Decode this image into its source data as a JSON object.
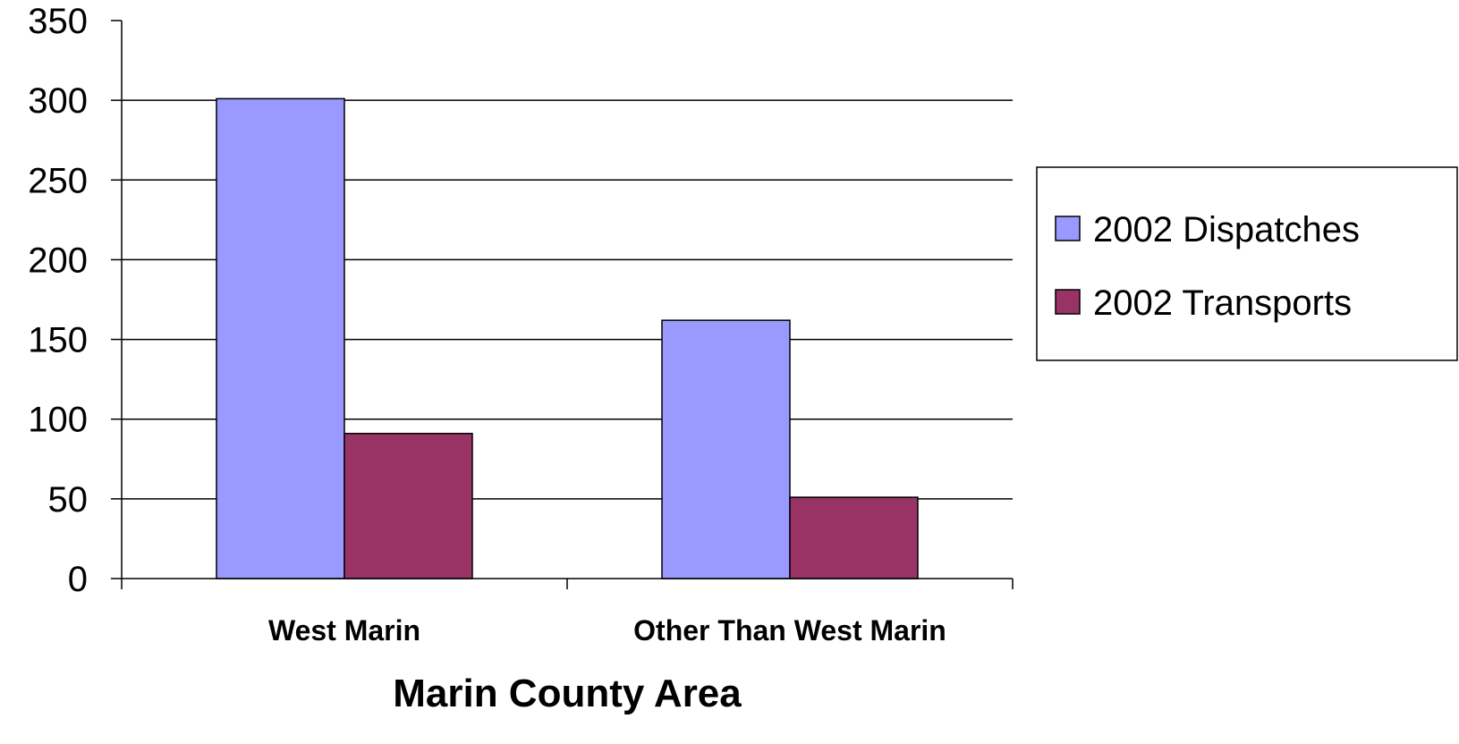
{
  "chart_data": {
    "type": "bar",
    "title": "",
    "xlabel": "Marin County Area",
    "ylabel": "",
    "categories": [
      "West Marin",
      "Other Than West Marin"
    ],
    "series": [
      {
        "name": "2002 Dispatches",
        "values": [
          301,
          162
        ],
        "color": "#9999FF"
      },
      {
        "name": "2002 Transports",
        "values": [
          91,
          51
        ],
        "color": "#993366"
      }
    ],
    "ylim": [
      0,
      350
    ],
    "yticks": [
      0,
      50,
      100,
      150,
      200,
      250,
      300,
      350
    ],
    "grid": true,
    "legend_position": "right"
  }
}
